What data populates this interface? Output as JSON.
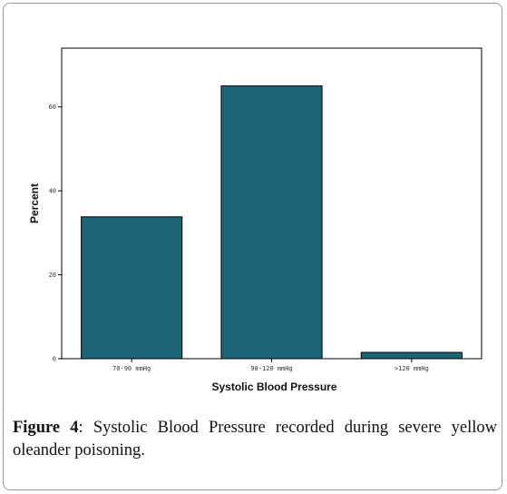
{
  "chart_data": {
    "type": "bar",
    "categories": [
      "70-90 mmHg",
      "90-120 mmHg",
      ">120 mmHg"
    ],
    "values": [
      33.8,
      65,
      1.5
    ],
    "xlabel": "Systolic Blood Pressure",
    "ylabel": "Percent",
    "ylim": [
      0,
      74
    ],
    "yticks": [
      0,
      20,
      40,
      60
    ],
    "grid": false,
    "bar_color": "#1d6478",
    "bar_edge_color": "#000000"
  },
  "caption": {
    "label": "Figure 4",
    "text": ": Systolic Blood Pressure recorded during severe yellow oleander poisoning."
  }
}
